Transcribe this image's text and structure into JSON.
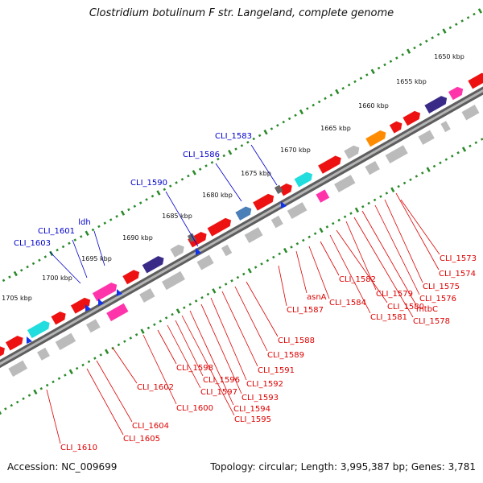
{
  "title": "Clostridium botulinum F str. Langeland, complete genome",
  "accession": "Accession: NC_009699",
  "topology": "Topology: circular; Length: 3,995,387 bp; Genes: 3,781",
  "colors": {
    "backbone": "#7a7a7a",
    "tick_dot": "#2a8a2a",
    "forward_gene": "#ee1111",
    "cds_cyan": "#22dddd",
    "cds_magenta": "#ff33aa",
    "cds_navy": "#3a2a88",
    "cds_steel": "#4a7fb8",
    "cds_gray": "#bbbbbb",
    "cds_orange": "#ff8c00",
    "rna_blue": "#1133ee",
    "label_blue": "#0000cc",
    "label_red": "#dd0000"
  },
  "scale": {
    "unit": "kbp",
    "ticks": [
      "1650 kbp",
      "1655 kbp",
      "1660 kbp",
      "1665 kbp",
      "1670 kbp",
      "1675 kbp",
      "1680 kbp",
      "1685 kbp",
      "1690 kbp",
      "1695 kbp",
      "1700 kbp",
      "1705 kbp"
    ]
  },
  "labels": {
    "forward": [
      "CLI_1583",
      "CLI_1586",
      "CLI_1590",
      "ldh",
      "CLI_1601",
      "CLI_1603"
    ],
    "reverse": [
      "CLI_1573",
      "CLI_1574",
      "CLI_1575",
      "CLI_1576",
      "mtbC",
      "CLI_1578",
      "CLI_1579",
      "CLI_1580",
      "CLI_1581",
      "CLI_1582",
      "CLI_1584",
      "asnA",
      "CLI_1587",
      "CLI_1588",
      "CLI_1589",
      "CLI_1591",
      "CLI_1592",
      "CLI_1593",
      "CLI_1594",
      "CLI_1595",
      "CLI_1596",
      "CLI_1597",
      "CLI_1598",
      "CLI_1600",
      "CLI_1602",
      "CLI_1604",
      "CLI_1605",
      "CLI_1610"
    ]
  }
}
